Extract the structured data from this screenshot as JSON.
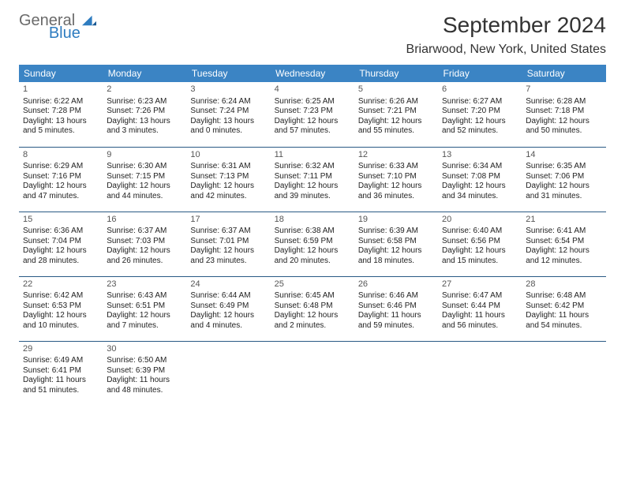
{
  "logo": {
    "line1": "General",
    "line2": "Blue"
  },
  "title": "September 2024",
  "location": "Briarwood, New York, United States",
  "header_bg": "#3b84c4",
  "header_fg": "#ffffff",
  "row_border": "#2a5a85",
  "body_font_size": 10,
  "daynum_font_size": 11,
  "dayNames": [
    "Sunday",
    "Monday",
    "Tuesday",
    "Wednesday",
    "Thursday",
    "Friday",
    "Saturday"
  ],
  "weeks": [
    [
      {
        "n": "1",
        "sr": "Sunrise: 6:22 AM",
        "ss": "Sunset: 7:28 PM",
        "dl": "Daylight: 13 hours and 5 minutes."
      },
      {
        "n": "2",
        "sr": "Sunrise: 6:23 AM",
        "ss": "Sunset: 7:26 PM",
        "dl": "Daylight: 13 hours and 3 minutes."
      },
      {
        "n": "3",
        "sr": "Sunrise: 6:24 AM",
        "ss": "Sunset: 7:24 PM",
        "dl": "Daylight: 13 hours and 0 minutes."
      },
      {
        "n": "4",
        "sr": "Sunrise: 6:25 AM",
        "ss": "Sunset: 7:23 PM",
        "dl": "Daylight: 12 hours and 57 minutes."
      },
      {
        "n": "5",
        "sr": "Sunrise: 6:26 AM",
        "ss": "Sunset: 7:21 PM",
        "dl": "Daylight: 12 hours and 55 minutes."
      },
      {
        "n": "6",
        "sr": "Sunrise: 6:27 AM",
        "ss": "Sunset: 7:20 PM",
        "dl": "Daylight: 12 hours and 52 minutes."
      },
      {
        "n": "7",
        "sr": "Sunrise: 6:28 AM",
        "ss": "Sunset: 7:18 PM",
        "dl": "Daylight: 12 hours and 50 minutes."
      }
    ],
    [
      {
        "n": "8",
        "sr": "Sunrise: 6:29 AM",
        "ss": "Sunset: 7:16 PM",
        "dl": "Daylight: 12 hours and 47 minutes."
      },
      {
        "n": "9",
        "sr": "Sunrise: 6:30 AM",
        "ss": "Sunset: 7:15 PM",
        "dl": "Daylight: 12 hours and 44 minutes."
      },
      {
        "n": "10",
        "sr": "Sunrise: 6:31 AM",
        "ss": "Sunset: 7:13 PM",
        "dl": "Daylight: 12 hours and 42 minutes."
      },
      {
        "n": "11",
        "sr": "Sunrise: 6:32 AM",
        "ss": "Sunset: 7:11 PM",
        "dl": "Daylight: 12 hours and 39 minutes."
      },
      {
        "n": "12",
        "sr": "Sunrise: 6:33 AM",
        "ss": "Sunset: 7:10 PM",
        "dl": "Daylight: 12 hours and 36 minutes."
      },
      {
        "n": "13",
        "sr": "Sunrise: 6:34 AM",
        "ss": "Sunset: 7:08 PM",
        "dl": "Daylight: 12 hours and 34 minutes."
      },
      {
        "n": "14",
        "sr": "Sunrise: 6:35 AM",
        "ss": "Sunset: 7:06 PM",
        "dl": "Daylight: 12 hours and 31 minutes."
      }
    ],
    [
      {
        "n": "15",
        "sr": "Sunrise: 6:36 AM",
        "ss": "Sunset: 7:04 PM",
        "dl": "Daylight: 12 hours and 28 minutes."
      },
      {
        "n": "16",
        "sr": "Sunrise: 6:37 AM",
        "ss": "Sunset: 7:03 PM",
        "dl": "Daylight: 12 hours and 26 minutes."
      },
      {
        "n": "17",
        "sr": "Sunrise: 6:37 AM",
        "ss": "Sunset: 7:01 PM",
        "dl": "Daylight: 12 hours and 23 minutes."
      },
      {
        "n": "18",
        "sr": "Sunrise: 6:38 AM",
        "ss": "Sunset: 6:59 PM",
        "dl": "Daylight: 12 hours and 20 minutes."
      },
      {
        "n": "19",
        "sr": "Sunrise: 6:39 AM",
        "ss": "Sunset: 6:58 PM",
        "dl": "Daylight: 12 hours and 18 minutes."
      },
      {
        "n": "20",
        "sr": "Sunrise: 6:40 AM",
        "ss": "Sunset: 6:56 PM",
        "dl": "Daylight: 12 hours and 15 minutes."
      },
      {
        "n": "21",
        "sr": "Sunrise: 6:41 AM",
        "ss": "Sunset: 6:54 PM",
        "dl": "Daylight: 12 hours and 12 minutes."
      }
    ],
    [
      {
        "n": "22",
        "sr": "Sunrise: 6:42 AM",
        "ss": "Sunset: 6:53 PM",
        "dl": "Daylight: 12 hours and 10 minutes."
      },
      {
        "n": "23",
        "sr": "Sunrise: 6:43 AM",
        "ss": "Sunset: 6:51 PM",
        "dl": "Daylight: 12 hours and 7 minutes."
      },
      {
        "n": "24",
        "sr": "Sunrise: 6:44 AM",
        "ss": "Sunset: 6:49 PM",
        "dl": "Daylight: 12 hours and 4 minutes."
      },
      {
        "n": "25",
        "sr": "Sunrise: 6:45 AM",
        "ss": "Sunset: 6:48 PM",
        "dl": "Daylight: 12 hours and 2 minutes."
      },
      {
        "n": "26",
        "sr": "Sunrise: 6:46 AM",
        "ss": "Sunset: 6:46 PM",
        "dl": "Daylight: 11 hours and 59 minutes."
      },
      {
        "n": "27",
        "sr": "Sunrise: 6:47 AM",
        "ss": "Sunset: 6:44 PM",
        "dl": "Daylight: 11 hours and 56 minutes."
      },
      {
        "n": "28",
        "sr": "Sunrise: 6:48 AM",
        "ss": "Sunset: 6:42 PM",
        "dl": "Daylight: 11 hours and 54 minutes."
      }
    ],
    [
      {
        "n": "29",
        "sr": "Sunrise: 6:49 AM",
        "ss": "Sunset: 6:41 PM",
        "dl": "Daylight: 11 hours and 51 minutes."
      },
      {
        "n": "30",
        "sr": "Sunrise: 6:50 AM",
        "ss": "Sunset: 6:39 PM",
        "dl": "Daylight: 11 hours and 48 minutes."
      },
      null,
      null,
      null,
      null,
      null
    ]
  ]
}
